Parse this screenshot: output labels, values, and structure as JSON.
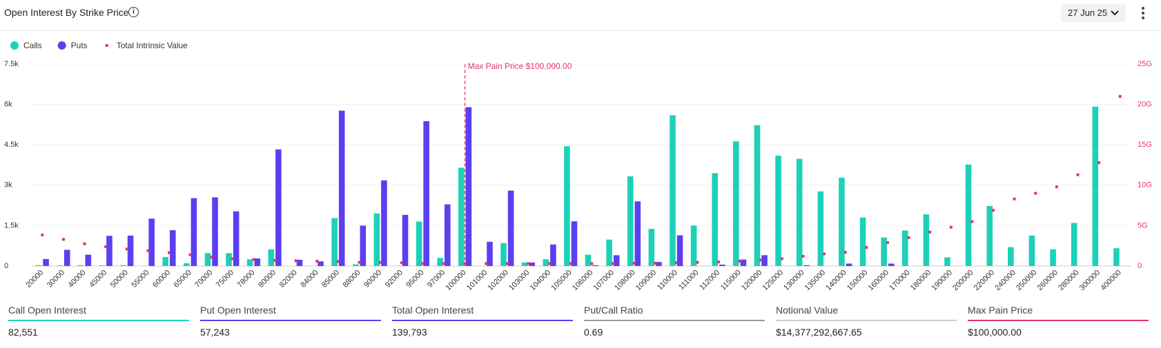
{
  "header": {
    "title": "Open Interest By Strike Price",
    "date": "27 Jun 25"
  },
  "chart_data": {
    "type": "bar",
    "categories": [
      "20000",
      "30000",
      "40000",
      "45000",
      "50000",
      "55000",
      "60000",
      "65000",
      "70000",
      "75000",
      "78000",
      "80000",
      "82000",
      "84000",
      "85000",
      "88000",
      "90000",
      "92000",
      "95000",
      "97000",
      "100000",
      "101000",
      "102000",
      "103000",
      "104000",
      "105000",
      "106000",
      "107000",
      "108000",
      "109000",
      "110000",
      "111000",
      "112000",
      "115000",
      "120000",
      "125000",
      "130000",
      "135000",
      "140000",
      "150000",
      "160000",
      "170000",
      "180000",
      "190000",
      "200000",
      "220000",
      "240000",
      "250000",
      "260000",
      "280000",
      "300000",
      "400000"
    ],
    "series": [
      {
        "name": "Calls",
        "color": "#1dd1b8",
        "values": [
          30,
          20,
          30,
          20,
          30,
          0,
          330,
          100,
          480,
          480,
          250,
          620,
          0,
          0,
          1780,
          60,
          1950,
          0,
          1650,
          300,
          3650,
          0,
          850,
          130,
          250,
          4450,
          420,
          980,
          3330,
          1380,
          5600,
          1500,
          3450,
          4630,
          5230,
          4100,
          3980,
          2770,
          3280,
          1800,
          1060,
          1320,
          1920,
          320,
          3770,
          2230,
          700,
          1130,
          620,
          1600,
          5920,
          660
        ]
      },
      {
        "name": "Puts",
        "color": "#5b3ff0",
        "values": [
          260,
          600,
          420,
          1120,
          1130,
          1760,
          1330,
          2520,
          2550,
          2030,
          280,
          4330,
          230,
          170,
          5770,
          1500,
          3180,
          1900,
          5380,
          2290,
          5900,
          900,
          2800,
          130,
          800,
          1660,
          30,
          400,
          2400,
          150,
          1140,
          0,
          50,
          240,
          400,
          0,
          30,
          0,
          90,
          0,
          90,
          0,
          0,
          0,
          0,
          0,
          0,
          0,
          0,
          0,
          0,
          0
        ]
      },
      {
        "name": "Total Intrinsic Value",
        "color": "#e8336b",
        "axis": "y2",
        "values": [
          3.85,
          3.3,
          2.75,
          2.4,
          2.1,
          1.9,
          1.65,
          1.4,
          1.1,
          0.9,
          0.8,
          0.7,
          0.65,
          0.6,
          0.55,
          0.45,
          0.45,
          0.4,
          0.3,
          0.3,
          0.3,
          0.3,
          0.3,
          0.3,
          0.3,
          0.3,
          0.3,
          0.3,
          0.35,
          0.35,
          0.4,
          0.45,
          0.5,
          0.6,
          0.75,
          0.9,
          1.2,
          1.5,
          1.7,
          2.3,
          2.9,
          3.5,
          4.2,
          4.8,
          5.5,
          6.9,
          8.3,
          9.0,
          9.8,
          11.3,
          12.8,
          21.0
        ]
      }
    ],
    "ylim": [
      0,
      7500
    ],
    "yticks": [
      0,
      {
        "value": 1500,
        "label": "1.5k"
      },
      {
        "value": 3000,
        "label": "3k"
      },
      {
        "value": 4500,
        "label": "4.5k"
      },
      {
        "value": 6000,
        "label": "6k"
      },
      {
        "value": 7500,
        "label": "7.5k"
      }
    ],
    "y2lim": [
      0,
      25
    ],
    "y2ticks": [
      0,
      {
        "value": 5,
        "label": "5G"
      },
      {
        "value": 10,
        "label": "10G"
      },
      {
        "value": 15,
        "label": "15G"
      },
      {
        "value": 20,
        "label": "20G"
      },
      {
        "value": 25,
        "label": "25G"
      }
    ],
    "grid": true,
    "annotation": {
      "text": "Max Pain Price $100,000.00",
      "category_index": 20,
      "color": "#e8336b"
    }
  },
  "stats": [
    {
      "label": "Call Open Interest",
      "value": "82,551",
      "color": "#1dd1b8"
    },
    {
      "label": "Put Open Interest",
      "value": "57,243",
      "color": "#5b3ff0"
    },
    {
      "label": "Total Open Interest",
      "value": "139,793",
      "color": "#5b3ff0"
    },
    {
      "label": "Put/Call Ratio",
      "value": "0.69",
      "color": "#999999"
    },
    {
      "label": "Notional Value",
      "value": "$14,377,292,667.65",
      "color": "#cccccc"
    },
    {
      "label": "Max Pain Price",
      "value": "$100,000.00",
      "color": "#e8336b"
    }
  ]
}
